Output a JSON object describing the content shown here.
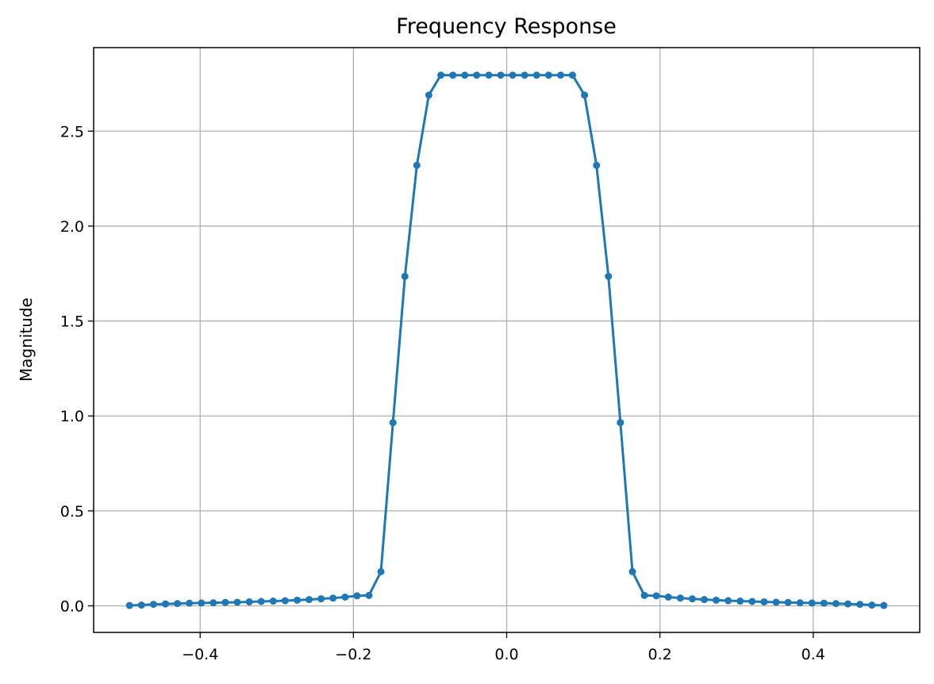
{
  "chart_data": {
    "type": "line",
    "title": "Frequency Response",
    "xlabel": "",
    "ylabel": "Magnitude",
    "xlim": [
      -0.539,
      0.539
    ],
    "ylim": [
      -0.14,
      2.94
    ],
    "grid": true,
    "legend": "none",
    "colors": {
      "line": "#1f77b4",
      "grid": "#b0b0b0",
      "axis": "#000000"
    },
    "x_ticks": [
      {
        "value": -0.4,
        "label": "−0.4"
      },
      {
        "value": -0.2,
        "label": "−0.2"
      },
      {
        "value": 0.0,
        "label": "0.0"
      },
      {
        "value": 0.2,
        "label": "0.2"
      },
      {
        "value": 0.4,
        "label": "0.4"
      }
    ],
    "y_ticks": [
      {
        "value": 0.0,
        "label": "0.0"
      },
      {
        "value": 0.5,
        "label": "0.5"
      },
      {
        "value": 1.0,
        "label": "1.0"
      },
      {
        "value": 1.5,
        "label": "1.5"
      },
      {
        "value": 2.0,
        "label": "2.0"
      },
      {
        "value": 2.5,
        "label": "2.5"
      }
    ],
    "series": [
      {
        "x": [
          -0.4922,
          -0.4766,
          -0.4609,
          -0.4453,
          -0.4297,
          -0.4141,
          -0.3984,
          -0.3828,
          -0.3672,
          -0.3516,
          -0.3359,
          -0.3203,
          -0.3047,
          -0.2891,
          -0.2734,
          -0.2578,
          -0.2422,
          -0.2266,
          -0.2109,
          -0.1953,
          -0.1797,
          -0.1641,
          -0.1484,
          -0.1328,
          -0.1172,
          -0.1016,
          -0.0859,
          -0.0703,
          -0.0547,
          -0.0391,
          -0.0234,
          -0.0078,
          0.0078,
          0.0234,
          0.0391,
          0.0547,
          0.0703,
          0.0859,
          0.1016,
          0.1172,
          0.1328,
          0.1484,
          0.1641,
          0.1797,
          0.1953,
          0.2109,
          0.2266,
          0.2422,
          0.2578,
          0.2734,
          0.2891,
          0.3047,
          0.3203,
          0.3359,
          0.3516,
          0.3672,
          0.3828,
          0.3984,
          0.4141,
          0.4297,
          0.4453,
          0.4609,
          0.4766,
          0.4922
        ],
        "y": [
          0.002,
          0.004,
          0.008,
          0.01,
          0.012,
          0.014,
          0.015,
          0.016,
          0.018,
          0.019,
          0.021,
          0.023,
          0.025,
          0.027,
          0.03,
          0.033,
          0.037,
          0.041,
          0.046,
          0.053,
          0.055,
          0.18,
          0.965,
          1.735,
          2.32,
          2.69,
          2.795,
          2.795,
          2.795,
          2.795,
          2.795,
          2.795,
          2.795,
          2.795,
          2.795,
          2.795,
          2.795,
          2.795,
          2.69,
          2.32,
          1.735,
          0.965,
          0.18,
          0.055,
          0.053,
          0.046,
          0.041,
          0.037,
          0.033,
          0.03,
          0.027,
          0.025,
          0.023,
          0.021,
          0.019,
          0.018,
          0.016,
          0.015,
          0.014,
          0.012,
          0.01,
          0.008,
          0.004,
          0.002
        ]
      }
    ]
  }
}
